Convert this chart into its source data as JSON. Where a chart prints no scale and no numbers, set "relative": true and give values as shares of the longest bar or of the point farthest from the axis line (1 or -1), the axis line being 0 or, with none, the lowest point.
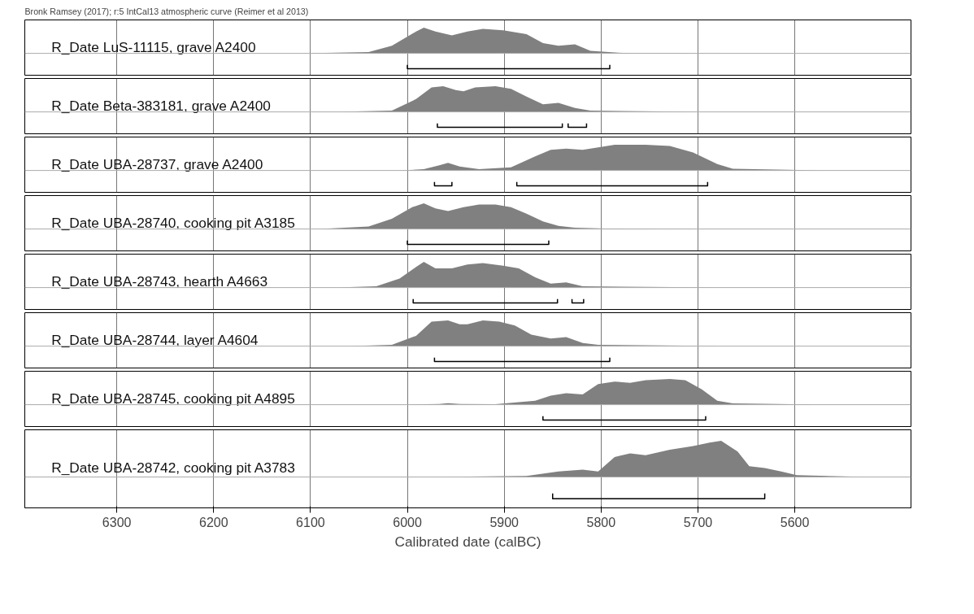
{
  "chart_data": [
    {
      "type": "area",
      "title": "Bronk Ramsey (2017); r:5 IntCal13 atmospheric curve (Reimer et al 2013)",
      "relative": true,
      "xlim": [
        6395,
        5480
      ],
      "xticks": [
        6300,
        6200,
        6100,
        6000,
        5900,
        5800,
        5700,
        5600
      ],
      "grid": "x",
      "tick_labels": false,
      "series": [
        {
          "name": "R_Date LuS-11115, grave A2400",
          "color": "#808080",
          "x": [
            6106,
            6040,
            6016,
            5991,
            5983,
            5971,
            5954,
            5938,
            5922,
            5901,
            5877,
            5860,
            5844,
            5827,
            5811,
            5778,
            5664
          ],
          "values": [
            0,
            0.05,
            0.3,
            0.85,
            1.0,
            0.85,
            0.7,
            0.85,
            0.95,
            0.9,
            0.75,
            0.4,
            0.3,
            0.35,
            0.1,
            0.02,
            0
          ]
        },
        {
          "type": "line",
          "color": "#000000",
          "x": [
            6000,
            6000,
            5791,
            5791
          ],
          "values": [
            -0.45,
            -0.6,
            -0.6,
            -0.45
          ]
        }
      ]
    },
    {
      "type": "area",
      "relative": true,
      "xlim": [
        6395,
        5480
      ],
      "xticks": [
        6300,
        6200,
        6100,
        6000,
        5900,
        5800,
        5700,
        5600
      ],
      "grid": "x",
      "tick_labels": false,
      "series": [
        {
          "name": "R_Date Beta-383181, grave A2400",
          "color": "#808080",
          "x": [
            6073,
            6016,
            5991,
            5975,
            5963,
            5950,
            5942,
            5930,
            5909,
            5893,
            5877,
            5860,
            5844,
            5827,
            5811,
            5696
          ],
          "values": [
            0,
            0.05,
            0.5,
            0.95,
            1.0,
            0.85,
            0.8,
            0.95,
            1.0,
            0.9,
            0.6,
            0.3,
            0.35,
            0.15,
            0.05,
            0
          ]
        },
        {
          "type": "line",
          "color": "#000000",
          "x": [
            5969,
            5969,
            5840,
            5840
          ],
          "values": [
            -0.45,
            -0.6,
            -0.6,
            -0.45
          ]
        },
        {
          "type": "line",
          "color": "#000000",
          "x": [
            5834,
            5834,
            5815,
            5815
          ],
          "values": [
            -0.45,
            -0.6,
            -0.6,
            -0.45
          ]
        }
      ]
    },
    {
      "type": "area",
      "relative": true,
      "xlim": [
        6395,
        5480
      ],
      "xticks": [
        6300,
        6200,
        6100,
        6000,
        5900,
        5800,
        5700,
        5600
      ],
      "grid": "x",
      "tick_labels": false,
      "series": [
        {
          "name": "R_Date UBA-28737, grave A2400",
          "color": "#808080",
          "x": [
            6106,
            6008,
            5983,
            5967,
            5958,
            5946,
            5926,
            5893,
            5868,
            5852,
            5836,
            5819,
            5811,
            5786,
            5754,
            5729,
            5705,
            5680,
            5664,
            5573
          ],
          "values": [
            0,
            0,
            0.05,
            0.2,
            0.3,
            0.15,
            0.05,
            0.12,
            0.55,
            0.8,
            0.85,
            0.8,
            0.85,
            1.0,
            1.0,
            0.95,
            0.7,
            0.25,
            0.07,
            0
          ]
        },
        {
          "type": "line",
          "color": "#000000",
          "x": [
            5972,
            5972,
            5954,
            5954
          ],
          "values": [
            -0.45,
            -0.6,
            -0.6,
            -0.45
          ]
        },
        {
          "type": "line",
          "color": "#000000",
          "x": [
            5887,
            5887,
            5690,
            5690
          ],
          "values": [
            -0.45,
            -0.6,
            -0.6,
            -0.45
          ]
        }
      ]
    },
    {
      "type": "area",
      "relative": true,
      "xlim": [
        6395,
        5480
      ],
      "xticks": [
        6300,
        6200,
        6100,
        6000,
        5900,
        5800,
        5700,
        5600
      ],
      "grid": "x",
      "tick_labels": false,
      "series": [
        {
          "name": "R_Date UBA-28740, cooking pit A3185",
          "color": "#808080",
          "x": [
            6090,
            6040,
            6016,
            5995,
            5983,
            5971,
            5958,
            5942,
            5926,
            5909,
            5893,
            5877,
            5860,
            5844,
            5827,
            5795,
            5680
          ],
          "values": [
            0,
            0.1,
            0.4,
            0.85,
            1.0,
            0.8,
            0.7,
            0.85,
            0.95,
            0.95,
            0.85,
            0.6,
            0.3,
            0.12,
            0.05,
            0.02,
            0
          ]
        },
        {
          "type": "line",
          "color": "#000000",
          "x": [
            6000,
            6000,
            5854,
            5854
          ],
          "values": [
            -0.45,
            -0.6,
            -0.6,
            -0.45
          ]
        }
      ]
    },
    {
      "type": "area",
      "relative": true,
      "xlim": [
        6395,
        5480
      ],
      "xticks": [
        6300,
        6200,
        6100,
        6000,
        5900,
        5800,
        5700,
        5600
      ],
      "grid": "x",
      "tick_labels": false,
      "series": [
        {
          "name": "R_Date UBA-28743, hearth A4663",
          "color": "#808080",
          "x": [
            6073,
            6032,
            6008,
            5991,
            5983,
            5971,
            5954,
            5938,
            5922,
            5901,
            5885,
            5868,
            5852,
            5836,
            5819,
            5672
          ],
          "values": [
            0,
            0.05,
            0.35,
            0.8,
            1.0,
            0.75,
            0.75,
            0.9,
            0.95,
            0.85,
            0.75,
            0.4,
            0.15,
            0.2,
            0.05,
            0
          ]
        },
        {
          "type": "line",
          "color": "#000000",
          "x": [
            5994,
            5994,
            5845,
            5845
          ],
          "values": [
            -0.45,
            -0.6,
            -0.6,
            -0.45
          ]
        },
        {
          "type": "line",
          "color": "#000000",
          "x": [
            5830,
            5830,
            5818,
            5818
          ],
          "values": [
            -0.45,
            -0.6,
            -0.6,
            -0.45
          ]
        }
      ]
    },
    {
      "type": "area",
      "relative": true,
      "xlim": [
        6395,
        5480
      ],
      "xticks": [
        6300,
        6200,
        6100,
        6000,
        5900,
        5800,
        5700,
        5600
      ],
      "grid": "x",
      "tick_labels": false,
      "series": [
        {
          "name": "R_Date UBA-28744, layer A4604",
          "color": "#808080",
          "x": [
            6057,
            6016,
            5991,
            5975,
            5958,
            5946,
            5938,
            5922,
            5905,
            5889,
            5872,
            5852,
            5836,
            5819,
            5803,
            5672
          ],
          "values": [
            0,
            0.05,
            0.4,
            0.95,
            1.0,
            0.85,
            0.85,
            1.0,
            0.95,
            0.8,
            0.45,
            0.3,
            0.35,
            0.12,
            0.05,
            0
          ]
        },
        {
          "type": "line",
          "color": "#000000",
          "x": [
            5972,
            5972,
            5791,
            5791
          ],
          "values": [
            -0.45,
            -0.6,
            -0.6,
            -0.45
          ]
        }
      ]
    },
    {
      "type": "area",
      "relative": true,
      "xlim": [
        6395,
        5480
      ],
      "xticks": [
        6300,
        6200,
        6100,
        6000,
        5900,
        5800,
        5700,
        5600
      ],
      "grid": "x",
      "tick_labels": false,
      "series": [
        {
          "name": "R_Date UBA-28745, cooking pit A4895",
          "color": "#808080",
          "x": [
            6008,
            5967,
            5958,
            5946,
            5909,
            5868,
            5852,
            5836,
            5819,
            5803,
            5786,
            5770,
            5754,
            5729,
            5713,
            5696,
            5680,
            5664,
            5573
          ],
          "values": [
            0,
            0.03,
            0.06,
            0.03,
            0.02,
            0.15,
            0.35,
            0.45,
            0.4,
            0.8,
            0.9,
            0.85,
            0.95,
            1.0,
            0.95,
            0.6,
            0.15,
            0.05,
            0
          ]
        },
        {
          "type": "line",
          "color": "#000000",
          "x": [
            5860,
            5860,
            5692,
            5692
          ],
          "values": [
            -0.45,
            -0.6,
            -0.6,
            -0.45
          ]
        }
      ]
    },
    {
      "type": "area",
      "relative": true,
      "xlim": [
        6395,
        5480
      ],
      "xticks": [
        6300,
        6200,
        6100,
        6000,
        5900,
        5800,
        5700,
        5600
      ],
      "grid": "x",
      "tick_labels": "x",
      "xlabel": "Calibrated date (calBC)",
      "series": [
        {
          "name": "R_Date UBA-28742, cooking pit A3783",
          "color": "#808080",
          "x": [
            5975,
            5877,
            5844,
            5819,
            5803,
            5786,
            5770,
            5754,
            5729,
            5705,
            5688,
            5676,
            5659,
            5647,
            5631,
            5614,
            5598,
            5524
          ],
          "values": [
            0,
            0.03,
            0.15,
            0.2,
            0.15,
            0.55,
            0.65,
            0.6,
            0.75,
            0.85,
            0.95,
            1.0,
            0.7,
            0.3,
            0.25,
            0.15,
            0.05,
            0
          ]
        },
        {
          "type": "line",
          "color": "#000000",
          "x": [
            5850,
            5850,
            5631,
            5631
          ],
          "values": [
            -0.45,
            -0.6,
            -0.6,
            -0.45
          ]
        }
      ]
    }
  ]
}
